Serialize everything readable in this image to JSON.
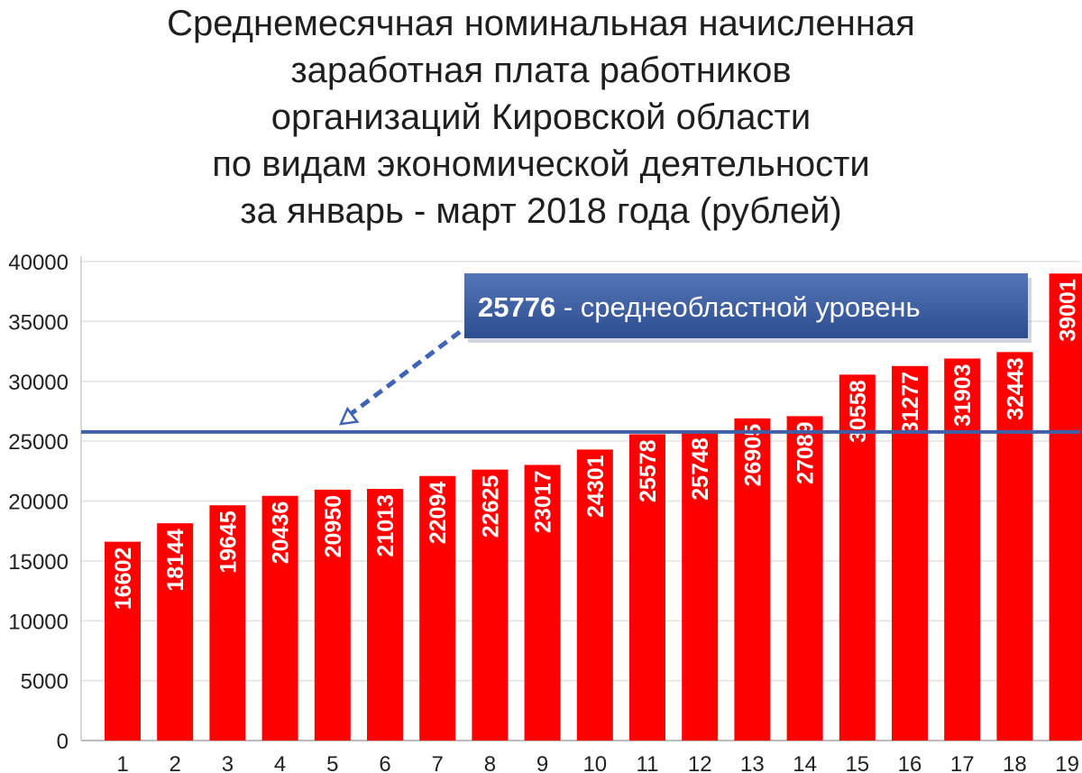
{
  "chart_data": {
    "type": "bar",
    "title_lines": [
      "Среднемесячная номинальная начисленная",
      "заработная плата работников",
      "организаций Кировской области",
      "по видам экономической деятельности",
      "за январь - март 2018 года (рублей)"
    ],
    "categories": [
      "1",
      "2",
      "3",
      "4",
      "5",
      "6",
      "7",
      "8",
      "9",
      "10",
      "11",
      "12",
      "13",
      "14",
      "15",
      "16",
      "17",
      "18",
      "19"
    ],
    "values": [
      16602,
      18144,
      19645,
      20436,
      20950,
      21013,
      22094,
      22625,
      23017,
      24301,
      25578,
      25748,
      26905,
      27089,
      30558,
      31277,
      31903,
      32443,
      39001
    ],
    "value_labels": [
      "16602",
      "18144",
      "19645",
      "20436",
      "20950",
      "21013",
      "22094",
      "22625",
      "23017",
      "24301",
      "25578",
      "25748",
      "26905",
      "27089",
      "30558",
      "31277",
      "31903",
      "32443",
      "39001"
    ],
    "ylim": [
      0,
      40000
    ],
    "yticks": [
      0,
      5000,
      10000,
      15000,
      20000,
      25000,
      30000,
      35000,
      40000
    ],
    "ytick_labels": [
      "0",
      "5000",
      "10000",
      "15000",
      "20000",
      "25000",
      "30000",
      "35000",
      "40000"
    ],
    "grid": true,
    "bar_color": "#ff0000",
    "reference_line": {
      "value": 25776,
      "color": "#3f5fa8",
      "label_value": "25776",
      "label_text": " - среднеобластной уровень"
    }
  }
}
